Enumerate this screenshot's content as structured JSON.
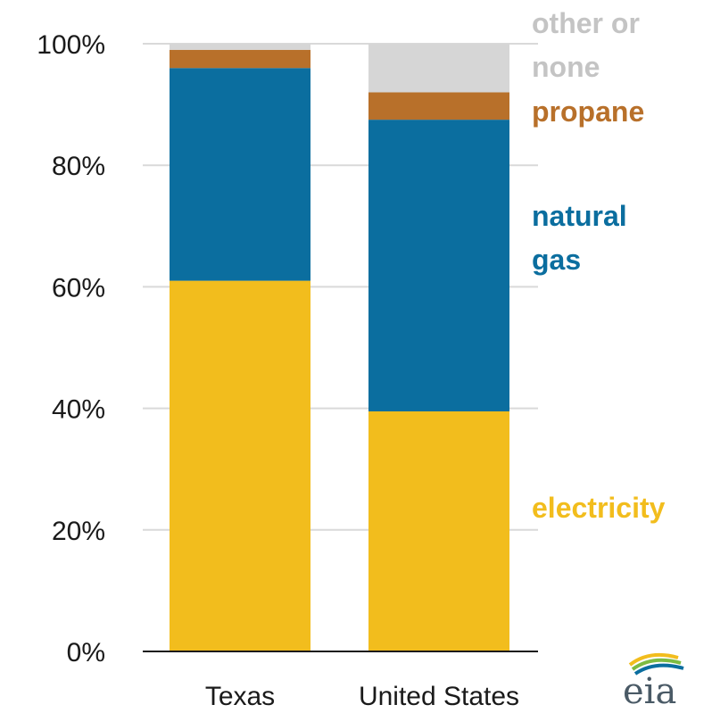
{
  "chart_data": {
    "type": "bar",
    "stacked": true,
    "title": "",
    "xlabel": "",
    "ylabel": "",
    "ylim": [
      0,
      100
    ],
    "y_ticks": [
      "0%",
      "20%",
      "40%",
      "60%",
      "80%",
      "100%"
    ],
    "y_tick_values": [
      0,
      20,
      40,
      60,
      80,
      100
    ],
    "grid": true,
    "legend_placement": "right (inline labels)",
    "categories": [
      "Texas",
      "United States"
    ],
    "series": [
      {
        "name": "electricity",
        "values": [
          61,
          39.5
        ],
        "color": "#f2bd1d"
      },
      {
        "name": "natural gas",
        "values": [
          35,
          48
        ],
        "color": "#0b6e9f"
      },
      {
        "name": "propane",
        "values": [
          3,
          4.5
        ],
        "color": "#b8702a"
      },
      {
        "name": "other or none",
        "values": [
          1,
          8
        ],
        "color": "#d6d6d6"
      }
    ],
    "legend_lines": [
      {
        "series": "other or none",
        "lines": [
          "other or",
          "none"
        ]
      },
      {
        "series": "propane",
        "lines": [
          "propane"
        ]
      },
      {
        "series": "natural gas",
        "lines": [
          "natural",
          "gas"
        ]
      },
      {
        "series": "electricity",
        "lines": [
          "electricity"
        ]
      }
    ]
  },
  "logo": {
    "text": "eia",
    "name": "eia-logo"
  },
  "colors": {
    "grid": "#d9d9d9",
    "axis": "#1a1a1a",
    "text": "#1a1a1a"
  }
}
